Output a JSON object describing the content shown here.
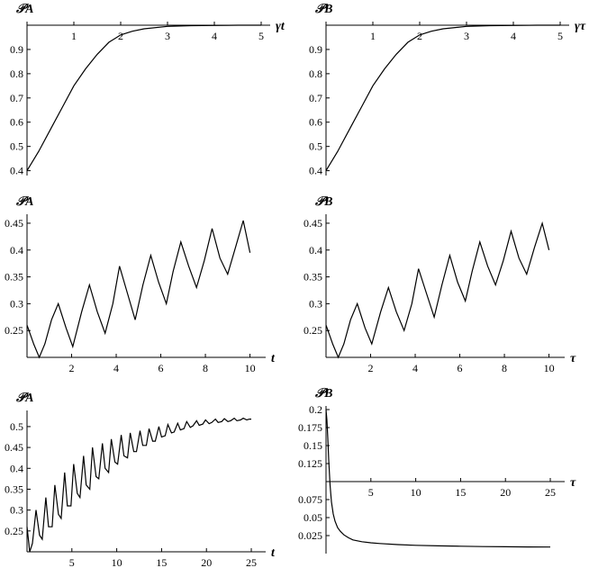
{
  "chart_data": [
    {
      "id": "top-left",
      "type": "line",
      "ylabel": "𝒫A",
      "xlabel": "γt",
      "xlim": [
        0,
        5
      ],
      "ylim": [
        0.38,
        1.0
      ],
      "xaxis_at": 1.0,
      "xticks": [
        1,
        2,
        3,
        4,
        5
      ],
      "yticks": [
        0.4,
        0.5,
        0.6,
        0.7,
        0.8,
        0.9
      ],
      "ytick_labels": [
        "0.4",
        "0.5",
        "0.6",
        "0.7",
        "0.8",
        "0.9"
      ],
      "series": [
        {
          "x": [
            0,
            0.25,
            0.5,
            0.75,
            1.0,
            1.25,
            1.5,
            1.75,
            2.0,
            2.25,
            2.5,
            3.0,
            3.5,
            4.0,
            4.5,
            5.0
          ],
          "y": [
            0.4,
            0.48,
            0.57,
            0.66,
            0.75,
            0.82,
            0.88,
            0.93,
            0.96,
            0.975,
            0.985,
            0.995,
            0.998,
            0.999,
            1.0,
            1.0
          ]
        }
      ]
    },
    {
      "id": "top-right",
      "type": "line",
      "ylabel": "𝒫B",
      "xlabel": "γτ",
      "xlim": [
        0,
        5
      ],
      "ylim": [
        0.38,
        1.0
      ],
      "xaxis_at": 1.0,
      "xticks": [
        1,
        2,
        3,
        4,
        5
      ],
      "yticks": [
        0.4,
        0.5,
        0.6,
        0.7,
        0.8,
        0.9
      ],
      "ytick_labels": [
        "0.4",
        "0.5",
        "0.6",
        "0.7",
        "0.8",
        "0.9"
      ],
      "series": [
        {
          "x": [
            0,
            0.25,
            0.5,
            0.75,
            1.0,
            1.25,
            1.5,
            1.75,
            2.0,
            2.25,
            2.5,
            3.0,
            3.5,
            4.0,
            4.5,
            5.0
          ],
          "y": [
            0.4,
            0.48,
            0.57,
            0.66,
            0.75,
            0.82,
            0.88,
            0.93,
            0.96,
            0.975,
            0.985,
            0.995,
            0.998,
            0.999,
            1.0,
            1.0
          ]
        }
      ]
    },
    {
      "id": "mid-left",
      "type": "line",
      "ylabel": "𝒫A",
      "xlabel": "t",
      "xlim": [
        0,
        10.3
      ],
      "ylim": [
        0.2,
        0.46
      ],
      "xaxis_at": 0.2,
      "xticks": [
        2,
        4,
        6,
        8,
        10
      ],
      "yticks": [
        0.25,
        0.3,
        0.35,
        0.4,
        0.45
      ],
      "ytick_labels": [
        "0.25",
        "0.3",
        "0.35",
        "0.4",
        "0.45"
      ],
      "series": [
        {
          "x": [
            0.0,
            0.3,
            0.55,
            0.8,
            1.1,
            1.4,
            1.75,
            2.05,
            2.45,
            2.8,
            3.15,
            3.5,
            3.85,
            4.15,
            4.5,
            4.85,
            5.2,
            5.55,
            5.9,
            6.25,
            6.55,
            6.9,
            7.25,
            7.6,
            7.95,
            8.3,
            8.65,
            9.0,
            9.35,
            9.7,
            10.0
          ],
          "y": [
            0.26,
            0.225,
            0.2,
            0.225,
            0.27,
            0.3,
            0.255,
            0.22,
            0.285,
            0.335,
            0.285,
            0.245,
            0.3,
            0.37,
            0.32,
            0.27,
            0.335,
            0.39,
            0.34,
            0.3,
            0.36,
            0.415,
            0.37,
            0.33,
            0.38,
            0.44,
            0.385,
            0.355,
            0.405,
            0.455,
            0.395
          ]
        }
      ]
    },
    {
      "id": "mid-right",
      "type": "line",
      "ylabel": "𝒫B",
      "xlabel": "τ",
      "xlim": [
        0,
        10.3
      ],
      "ylim": [
        0.2,
        0.46
      ],
      "xaxis_at": 0.2,
      "xticks": [
        2,
        4,
        6,
        8,
        10
      ],
      "yticks": [
        0.25,
        0.3,
        0.35,
        0.4,
        0.45
      ],
      "ytick_labels": [
        "0.25",
        "0.3",
        "0.35",
        "0.4",
        "0.45"
      ],
      "series": [
        {
          "x": [
            0.0,
            0.3,
            0.55,
            0.8,
            1.1,
            1.4,
            1.75,
            2.05,
            2.45,
            2.8,
            3.15,
            3.5,
            3.85,
            4.15,
            4.5,
            4.85,
            5.2,
            5.55,
            5.9,
            6.25,
            6.55,
            6.9,
            7.25,
            7.6,
            7.95,
            8.3,
            8.65,
            9.0,
            9.35,
            9.7,
            10.0
          ],
          "y": [
            0.26,
            0.225,
            0.2,
            0.225,
            0.27,
            0.3,
            0.255,
            0.225,
            0.285,
            0.33,
            0.285,
            0.25,
            0.3,
            0.365,
            0.32,
            0.275,
            0.335,
            0.39,
            0.34,
            0.305,
            0.36,
            0.415,
            0.37,
            0.335,
            0.38,
            0.435,
            0.385,
            0.355,
            0.405,
            0.45,
            0.4
          ]
        }
      ]
    },
    {
      "id": "bottom-left",
      "type": "line",
      "ylabel": "𝒫A",
      "xlabel": "t",
      "xlim": [
        0,
        25.6
      ],
      "ylim": [
        0.2,
        0.53
      ],
      "xaxis_at": 0.2,
      "xticks": [
        5,
        10,
        15,
        20,
        25
      ],
      "yticks": [
        0.25,
        0.3,
        0.35,
        0.4,
        0.45,
        0.5
      ],
      "ytick_labels": [
        "0.25",
        "0.3",
        "0.35",
        "0.4",
        "0.45",
        "0.5"
      ],
      "series": [
        {
          "x": [
            0.0,
            0.3,
            0.6,
            1.0,
            1.4,
            1.7,
            2.1,
            2.4,
            2.8,
            3.1,
            3.5,
            3.8,
            4.2,
            4.5,
            4.9,
            5.2,
            5.6,
            5.9,
            6.3,
            6.6,
            7.0,
            7.3,
            7.7,
            8.0,
            8.4,
            8.7,
            9.1,
            9.4,
            9.8,
            10.1,
            10.5,
            10.8,
            11.2,
            11.5,
            11.9,
            12.2,
            12.6,
            12.9,
            13.3,
            13.6,
            14.0,
            14.3,
            14.7,
            15.0,
            15.4,
            15.7,
            16.1,
            16.4,
            16.8,
            17.1,
            17.5,
            17.8,
            18.2,
            18.5,
            18.9,
            19.2,
            19.6,
            19.9,
            20.3,
            20.6,
            21.0,
            21.3,
            21.7,
            22.0,
            22.4,
            22.7,
            23.1,
            23.4,
            23.8,
            24.1,
            24.5,
            24.8,
            25.0
          ],
          "y": [
            0.26,
            0.2,
            0.22,
            0.3,
            0.24,
            0.23,
            0.33,
            0.26,
            0.26,
            0.36,
            0.29,
            0.28,
            0.39,
            0.31,
            0.31,
            0.41,
            0.34,
            0.33,
            0.43,
            0.36,
            0.35,
            0.45,
            0.38,
            0.375,
            0.46,
            0.4,
            0.39,
            0.47,
            0.415,
            0.41,
            0.48,
            0.43,
            0.425,
            0.485,
            0.44,
            0.44,
            0.49,
            0.455,
            0.455,
            0.495,
            0.465,
            0.465,
            0.5,
            0.475,
            0.478,
            0.505,
            0.485,
            0.487,
            0.508,
            0.492,
            0.495,
            0.512,
            0.498,
            0.502,
            0.514,
            0.503,
            0.506,
            0.516,
            0.507,
            0.51,
            0.518,
            0.51,
            0.512,
            0.519,
            0.512,
            0.514,
            0.52,
            0.514,
            0.516,
            0.52,
            0.516,
            0.518,
            0.518
          ]
        }
      ]
    },
    {
      "id": "bottom-right",
      "type": "line",
      "ylabel": "𝒫B",
      "xlabel": "τ",
      "xlim": [
        0,
        25.6
      ],
      "ylim": [
        0,
        0.2
      ],
      "xaxis_at": 0.1,
      "xticks": [
        5,
        10,
        15,
        20,
        25
      ],
      "yticks": [
        0.025,
        0.05,
        0.075,
        0.125,
        0.15,
        0.175,
        0.2
      ],
      "ytick_labels": [
        "0.025",
        "0.05",
        "0.075",
        "0.125",
        "0.15",
        "0.175",
        "0.2"
      ],
      "series": [
        {
          "x": [
            0.0,
            0.1,
            0.2,
            0.3,
            0.45,
            0.6,
            0.8,
            1.0,
            1.3,
            1.6,
            2.0,
            2.5,
            3.0,
            4.0,
            5.0,
            6.0,
            8.0,
            10.0,
            12.5,
            15.0,
            17.5,
            20.0,
            22.5,
            25.0
          ],
          "y": [
            0.2,
            0.185,
            0.16,
            0.13,
            0.095,
            0.072,
            0.055,
            0.045,
            0.036,
            0.031,
            0.026,
            0.022,
            0.019,
            0.0165,
            0.015,
            0.014,
            0.0125,
            0.0115,
            0.0108,
            0.0102,
            0.0098,
            0.0095,
            0.0093,
            0.0091
          ]
        }
      ]
    }
  ]
}
